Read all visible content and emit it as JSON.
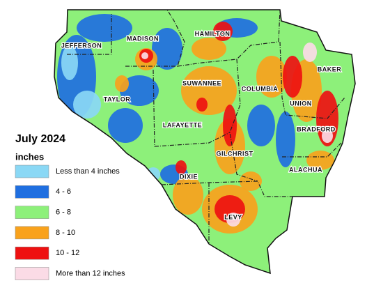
{
  "legend": {
    "title": "July 2024",
    "subtitle": "inches",
    "items": [
      {
        "label": "Less than 4 inches",
        "color": "#8ad8f5"
      },
      {
        "label": "4 - 6",
        "color": "#1f6fe0"
      },
      {
        "label": "6 - 8",
        "color": "#8df07a"
      },
      {
        "label": "8 - 10",
        "color": "#f9a21c"
      },
      {
        "label": "10 - 12",
        "color": "#ee1111"
      },
      {
        "label": "More than 12 inches",
        "color": "#fbdbe6"
      }
    ]
  },
  "counties": [
    "JEFFERSON",
    "MADISON",
    "HAMILTON",
    "SUWANNEE",
    "COLUMBIA",
    "BAKER",
    "UNION",
    "BRADFORD",
    "TAYLOR",
    "LAFAYETTE",
    "GILCHRIST",
    "DIXIE",
    "ALACHUA",
    "LEVY"
  ]
}
